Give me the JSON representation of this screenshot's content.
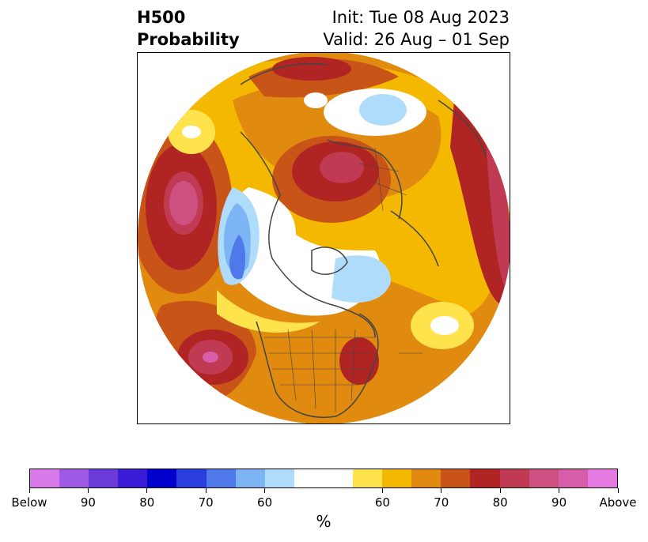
{
  "title": {
    "left_line1": "H500",
    "left_line2": "Probability",
    "init": "Init: Tue 08 Aug 2023",
    "valid": "Valid: 26 Aug – 01 Sep"
  },
  "colorbar": {
    "colors": [
      "#d97aeb",
      "#9e5ae2",
      "#6b3ad8",
      "#3a1bd6",
      "#0000cc",
      "#2a3ee0",
      "#4f78e8",
      "#7cb4f4",
      "#b0dcfb",
      "#ffffff",
      "#ffe34d",
      "#f5b800",
      "#e08a10",
      "#c85418",
      "#b02424",
      "#c03a54",
      "#cc5080",
      "#d65ea8",
      "#e57ae0"
    ],
    "labels": [
      "Below",
      "90",
      "80",
      "70",
      "60",
      "60",
      "70",
      "80",
      "90",
      "Above"
    ],
    "unit": "%"
  }
}
